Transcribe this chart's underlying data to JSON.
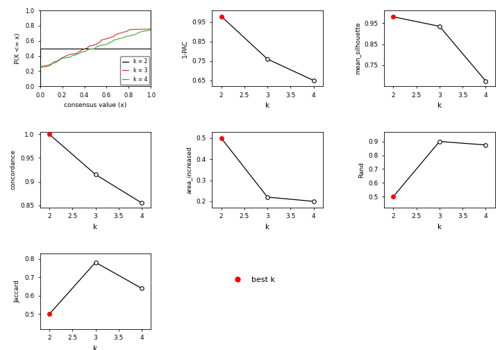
{
  "k_values": [
    2,
    3,
    4
  ],
  "pac_1minus": [
    0.98,
    0.76,
    0.65
  ],
  "mean_silhouette": [
    0.98,
    0.935,
    0.675
  ],
  "concordance": [
    1.0,
    0.915,
    0.855
  ],
  "area_increased": [
    0.5,
    0.22,
    0.2
  ],
  "rand": [
    0.5,
    0.9,
    0.875
  ],
  "jaccard": [
    0.5,
    0.78,
    0.64
  ],
  "best_k": 2,
  "bg_color": "#ffffff",
  "line_k2_color": "#000000",
  "line_k3_color": "#cc3333",
  "line_k4_color": "#33aa33",
  "pac_yticks": [
    0.65,
    0.75,
    0.85,
    0.95
  ],
  "sil_yticks": [
    0.75,
    0.85,
    0.95
  ],
  "conc_yticks": [
    0.85,
    0.9,
    0.95,
    1.0
  ],
  "area_yticks": [
    0.2,
    0.3,
    0.4,
    0.5
  ],
  "rand_yticks": [
    0.5,
    0.6,
    0.7,
    0.8,
    0.9
  ],
  "jacc_yticks": [
    0.5,
    0.6,
    0.7,
    0.8
  ]
}
